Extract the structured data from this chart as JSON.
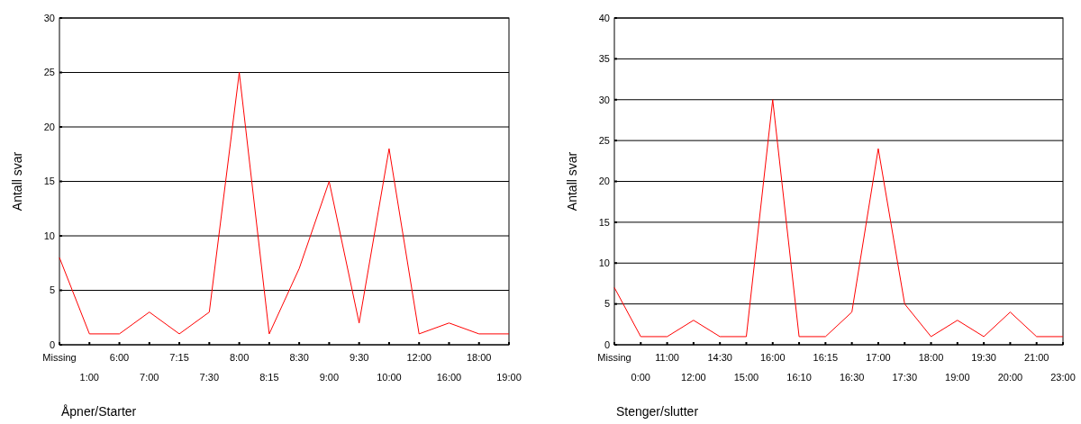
{
  "chart_data": [
    {
      "type": "line",
      "xlabel": "Åpner/Starter",
      "ylabel": "Antall svar",
      "categories": [
        "Missing",
        "1:00",
        "6:00",
        "7:00",
        "7:15",
        "7:30",
        "8:00",
        "8:15",
        "8:30",
        "9:00",
        "9:30",
        "10:00",
        "12:00",
        "16:00",
        "18:00",
        "19:00"
      ],
      "series": [
        {
          "color": "#ff0000",
          "values": [
            8,
            1,
            1,
            3,
            1,
            3,
            25,
            1,
            7,
            15,
            2,
            18,
            1,
            2,
            1,
            1
          ]
        }
      ],
      "ylim": [
        0,
        30
      ],
      "yticks": [
        0,
        5,
        10,
        15,
        20,
        25,
        30
      ],
      "grid": "y",
      "marker": "none",
      "line_style": "solid"
    },
    {
      "type": "line",
      "xlabel": "Stenger/slutter",
      "ylabel": "Antall svar",
      "categories": [
        "Missing",
        "0:00",
        "11:00",
        "12:00",
        "14:30",
        "15:00",
        "16:00",
        "16:10",
        "16:15",
        "16:30",
        "17:00",
        "17:30",
        "18:00",
        "19:00",
        "19:30",
        "20:00",
        "21:00",
        "23:00"
      ],
      "series": [
        {
          "color": "#ff0000",
          "values": [
            7,
            1,
            1,
            3,
            1,
            1,
            30,
            1,
            1,
            4,
            24,
            5,
            1,
            3,
            1,
            4,
            1,
            1
          ]
        }
      ],
      "ylim": [
        0,
        40
      ],
      "yticks": [
        0,
        5,
        10,
        15,
        20,
        25,
        30,
        35,
        40
      ],
      "grid": "y",
      "marker": "none",
      "line_style": "solid"
    }
  ]
}
